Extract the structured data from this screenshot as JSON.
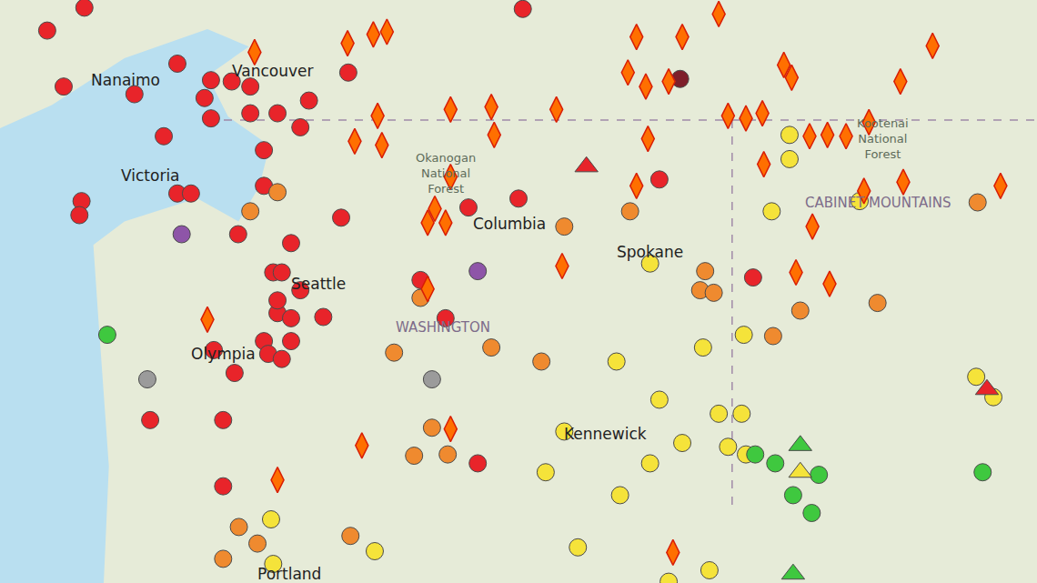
{
  "chart_data": {
    "type": "scatter",
    "xlim": [
      -126.53,
      -112.03
    ],
    "ylim": [
      45.23,
      49.81
    ],
    "tick_labels": false,
    "grid": false,
    "series": [
      {
        "color": "#e8242a",
        "marker": "circle",
        "x": [
          -125.87,
          -125.35,
          -125.64,
          -124.65,
          -124.05,
          -124.24,
          -125.39,
          -125.42,
          -124.05,
          -123.86,
          -123.58,
          -123.29,
          -123.03,
          -123.67,
          -123.58,
          -123.03,
          -122.84,
          -122.65,
          -122.33,
          -122.21,
          -121.66,
          -119.22,
          -122.84,
          -123.2,
          -122.46,
          -121.76,
          -122.71,
          -122.59,
          -122.33,
          -122.65,
          -122.46,
          -122.01,
          -122.84,
          -122.78,
          -122.59,
          -122.46,
          -123.54,
          -123.25,
          -124.43,
          -123.41,
          -123.41,
          -120.65,
          -120.3,
          -119.98,
          -119.28,
          -117.31,
          -116.0,
          -119.85,
          -122.65
        ],
        "y": [
          49.57,
          49.75,
          49.13,
          49.07,
          49.31,
          48.74,
          48.23,
          48.12,
          48.29,
          48.29,
          49.18,
          49.17,
          49.13,
          49.04,
          48.88,
          48.92,
          48.63,
          48.92,
          48.81,
          49.02,
          49.24,
          49.74,
          48.35,
          47.97,
          47.9,
          48.1,
          47.67,
          47.67,
          47.53,
          47.35,
          47.31,
          47.32,
          47.13,
          47.03,
          46.99,
          47.13,
          47.06,
          46.88,
          46.51,
          46.51,
          45.99,
          47.61,
          47.31,
          48.18,
          48.25,
          48.4,
          47.63,
          46.17,
          47.45
        ]
      },
      {
        "color": "#7e1f2a",
        "marker": "circle",
        "x": [
          -117.02
        ],
        "y": [
          49.19
        ]
      },
      {
        "color": "#ef8a2f",
        "marker": "circle",
        "x": [
          -122.65,
          -123.03,
          -118.64,
          -117.72,
          -120.65,
          -121.02,
          -119.66,
          -118.96,
          -116.67,
          -116.74,
          -116.55,
          -115.34,
          -115.72,
          -114.26,
          -112.86,
          -120.49,
          -120.74,
          -120.27,
          -123.19,
          -122.93,
          -123.41,
          -121.63
        ],
        "y": [
          48.3,
          48.15,
          48.03,
          48.15,
          47.47,
          47.04,
          47.08,
          46.97,
          47.68,
          47.53,
          47.51,
          47.37,
          47.17,
          47.43,
          48.22,
          46.45,
          46.23,
          46.24,
          45.67,
          45.54,
          45.42,
          45.6
        ]
      },
      {
        "color": "#f5e33a",
        "marker": "circle",
        "x": [
          -117.44,
          -115.49,
          -115.49,
          -115.74,
          -114.51,
          -116.7,
          -116.13,
          -117.91,
          -117.31,
          -116.48,
          -116.16,
          -118.64,
          -118.9,
          -117.44,
          -116.99,
          -116.35,
          -116.1,
          -117.86,
          -118.45,
          -121.29,
          -122.74,
          -112.88,
          -112.64,
          -117.18,
          -116.61,
          -122.71
        ],
        "y": [
          47.74,
          48.75,
          48.56,
          48.15,
          48.23,
          47.08,
          47.18,
          46.97,
          46.67,
          46.56,
          46.56,
          46.42,
          46.1,
          46.17,
          46.33,
          46.3,
          46.24,
          45.92,
          45.51,
          45.48,
          45.73,
          46.85,
          46.69,
          45.24,
          45.33,
          45.38
        ]
      },
      {
        "color": "#3fc83f",
        "marker": "circle",
        "x": [
          -125.03,
          -115.97,
          -115.69,
          -115.08,
          -115.44,
          -115.18,
          -112.79
        ],
        "y": [
          47.18,
          46.24,
          46.17,
          46.08,
          45.92,
          45.78,
          46.1
        ]
      },
      {
        "color": "#8e55a8",
        "marker": "circle",
        "x": [
          -123.99,
          -119.85
        ],
        "y": [
          47.97,
          47.68
        ]
      },
      {
        "color": "#9b9b9b",
        "marker": "circle",
        "x": [
          -124.47,
          -120.49
        ],
        "y": [
          46.83,
          46.83
        ]
      },
      {
        "color": "#e8242a",
        "marker": "triangle",
        "x": [
          -118.33,
          -112.73
        ],
        "y": [
          48.5,
          46.75
        ]
      },
      {
        "color": "#3fc83f",
        "marker": "triangle",
        "x": [
          -115.34,
          -115.44
        ],
        "y": [
          46.31,
          45.3
        ]
      },
      {
        "color": "#f5e33a",
        "marker": "triangle",
        "x": [
          -115.34
        ],
        "y": [
          46.1
        ]
      },
      {
        "color": "#ff6f00",
        "marker": "fire",
        "x": [
          -122.97,
          -121.67,
          -121.31,
          -121.12,
          -118.75,
          -120.23,
          -119.66,
          -119.62,
          -121.57,
          -121.19,
          -121.25,
          -120.23,
          -120.45,
          -120.55,
          -120.3,
          -120.55,
          -123.63,
          -118.67,
          -117.63,
          -116.99,
          -116.48,
          -117.75,
          -117.5,
          -117.18,
          -115.57,
          -115.46,
          -116.35,
          -116.1,
          -115.87,
          -114.38,
          -113.94,
          -113.49,
          -115.85,
          -115.21,
          -114.96,
          -114.7,
          -117.47,
          -117.63,
          -115.17,
          -115.4,
          -114.93,
          -114.45,
          -113.9,
          -112.54,
          -121.47,
          -120.23,
          -122.65,
          -117.12
        ],
        "y": [
          49.4,
          49.47,
          49.54,
          49.56,
          48.95,
          48.95,
          48.97,
          48.75,
          48.7,
          48.67,
          48.9,
          48.42,
          48.17,
          48.06,
          48.06,
          47.54,
          47.3,
          47.72,
          49.52,
          49.52,
          49.7,
          49.24,
          49.13,
          49.17,
          49.3,
          49.2,
          48.9,
          48.88,
          48.92,
          48.85,
          49.17,
          49.45,
          48.52,
          48.74,
          48.75,
          48.74,
          48.72,
          48.35,
          48.03,
          47.67,
          47.58,
          48.31,
          48.38,
          48.35,
          46.31,
          46.44,
          46.04,
          45.47
        ]
      }
    ],
    "annotations": [
      {
        "text": "Nanaimo",
        "x": -124.77,
        "y": 49.18
      },
      {
        "text": "Vancouver",
        "x": -122.71,
        "y": 49.25
      },
      {
        "text": "Victoria",
        "x": -124.43,
        "y": 48.43
      },
      {
        "text": "Seattle",
        "x": -122.08,
        "y": 47.58
      },
      {
        "text": "Olympia",
        "x": -123.41,
        "y": 47.03
      },
      {
        "text": "WASHINGTON",
        "x": -120.34,
        "y": 47.24
      },
      {
        "text": "Spokane",
        "x": -117.44,
        "y": 47.83
      },
      {
        "text": "Kennewick",
        "x": -118.07,
        "y": 46.4
      },
      {
        "text": "Portland",
        "x": -122.49,
        "y": 45.3
      },
      {
        "text": "Columbia",
        "x": -119.41,
        "y": 48.05
      },
      {
        "text": "Okanogan\nNational\nForest",
        "x": -120.3,
        "y": 48.45
      },
      {
        "text": "Kootenai\nNational\nForest",
        "x": -114.19,
        "y": 48.72
      },
      {
        "text": "CABINET MOUNTAINS",
        "x": -114.26,
        "y": 48.22
      }
    ]
  }
}
